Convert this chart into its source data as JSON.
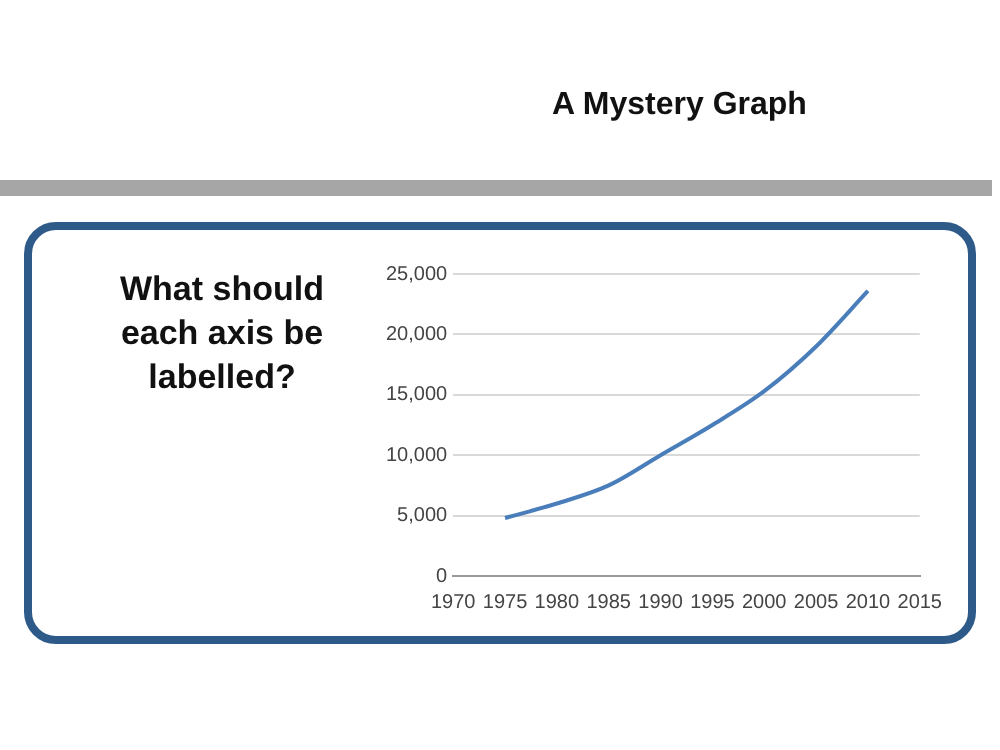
{
  "chart_data": {
    "type": "line",
    "title": "A Mystery Graph",
    "annotations": [
      "What should each axis be labelled?"
    ],
    "x": [
      1975,
      1980,
      1985,
      1990,
      1995,
      2000,
      2005,
      2010
    ],
    "series": [
      {
        "color": "#4a7ebb",
        "values": [
          4800,
          6000,
          7500,
          10000,
          12500,
          15300,
          19000,
          23600
        ]
      }
    ],
    "xlim": [
      1970,
      2015
    ],
    "xticks": [
      1970,
      1975,
      1980,
      1985,
      1990,
      1995,
      2000,
      2005,
      2010,
      2015
    ],
    "ylim": [
      0,
      25000
    ],
    "yticks": [
      0,
      {
        "value": 5000,
        "label": "5,000"
      },
      {
        "value": 10000,
        "label": "10,000"
      },
      {
        "value": 15000,
        "label": "15,000"
      },
      {
        "value": 20000,
        "label": "20,000"
      },
      {
        "value": 25000,
        "label": "25,000"
      }
    ],
    "grid": "y",
    "legend": false,
    "marker": "none",
    "line_style": "solid"
  }
}
